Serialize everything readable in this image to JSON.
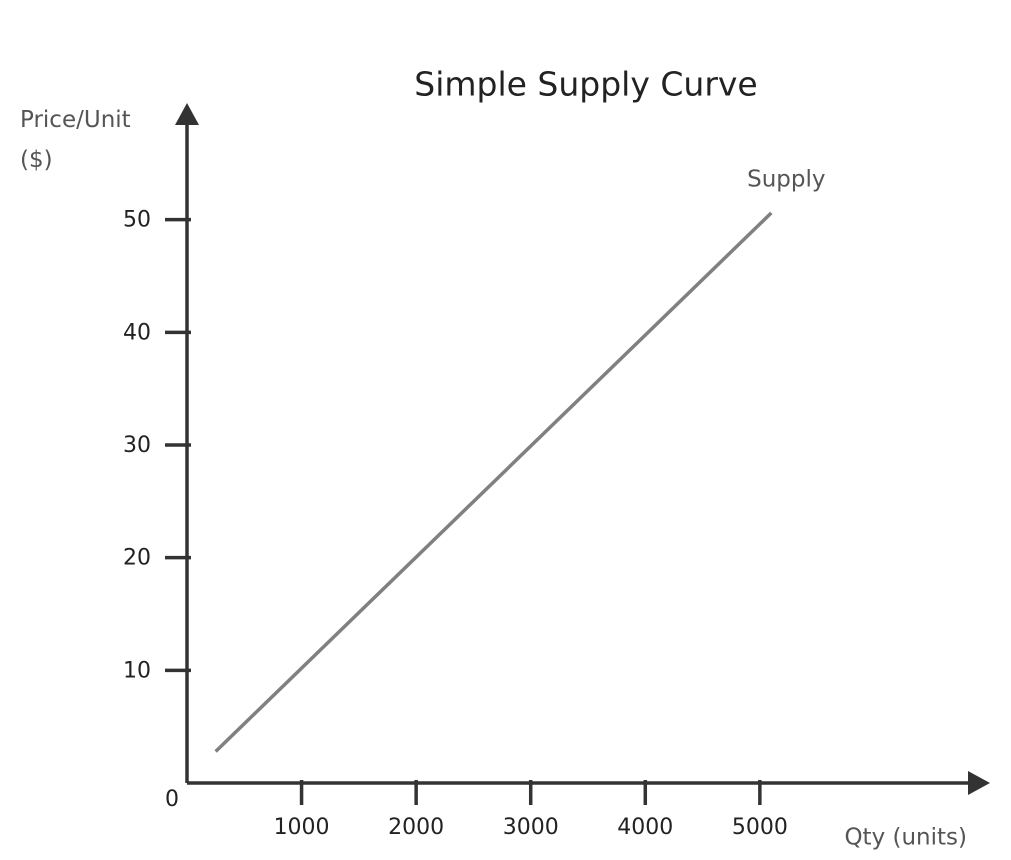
{
  "chart_data": {
    "type": "line",
    "title": "Simple Supply Curve",
    "x_label": "Qty (units)",
    "y_label": "Price/Unit ($)",
    "xlim": [
      0,
      7000
    ],
    "xticks": [
      1000,
      2000,
      3000,
      4000,
      5000
    ],
    "ylim": [
      0,
      60
    ],
    "yticks": [
      0,
      10,
      20,
      30,
      40,
      50
    ],
    "grid": false,
    "series": [
      {
        "name": "Supply",
        "color": "#808080",
        "x": [
          250,
          5100
        ],
        "values": [
          2.8,
          50.6
        ]
      }
    ]
  }
}
